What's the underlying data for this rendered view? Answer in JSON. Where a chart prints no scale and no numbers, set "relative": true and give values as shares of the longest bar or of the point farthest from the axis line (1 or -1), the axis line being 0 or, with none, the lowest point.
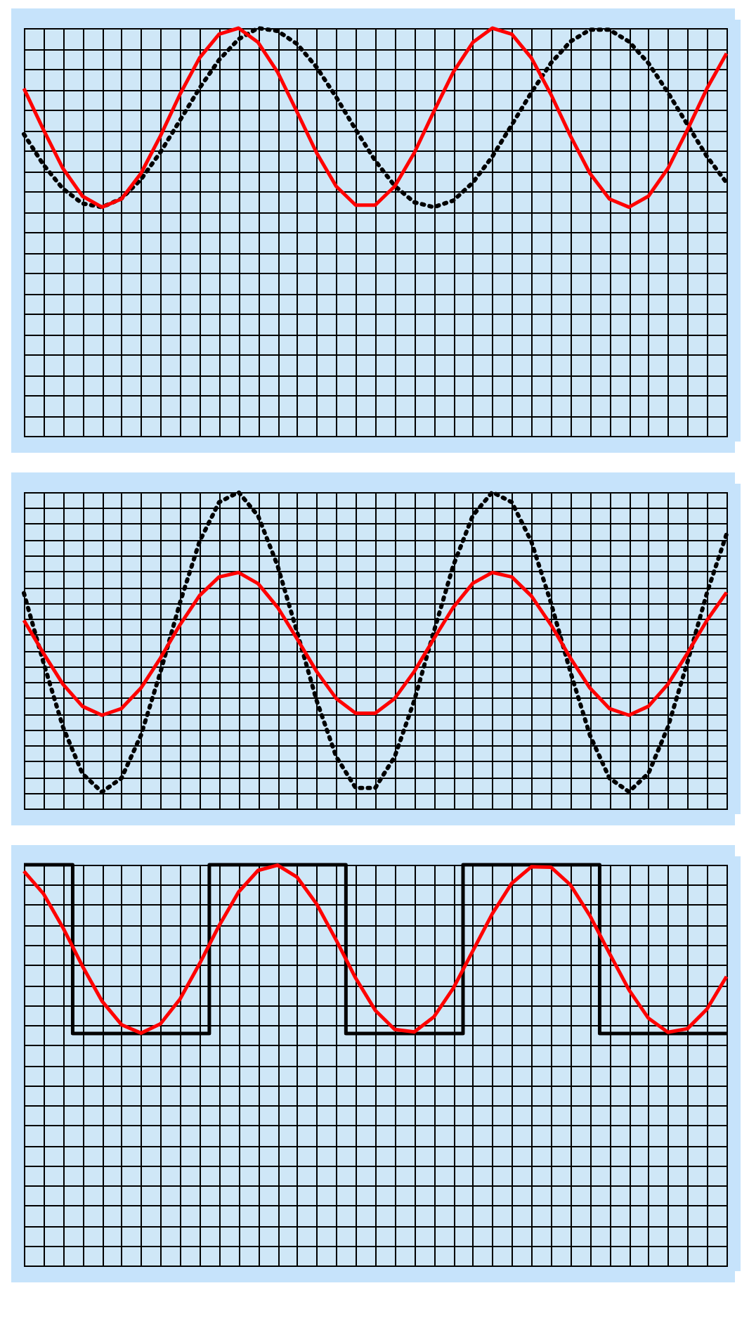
{
  "chart_data": [
    {
      "type": "line",
      "relative": true,
      "grid": true,
      "categories": [
        null,
        null,
        null,
        null,
        null,
        null,
        null,
        null,
        null,
        null,
        null,
        null,
        null,
        null,
        null,
        null,
        null,
        null,
        null,
        null,
        null,
        null,
        null,
        null,
        null,
        null,
        null,
        null,
        null,
        null,
        null,
        null,
        null,
        null,
        null,
        null,
        null
      ],
      "series": [
        {
          "color": "#000000",
          "line_style": "dotted",
          "values": [
            0.74,
            0.665,
            0.606,
            0.57,
            0.561,
            0.582,
            0.629,
            0.696,
            0.774,
            0.853,
            0.922,
            0.973,
            1,
            0.993,
            0.961,
            0.904,
            0.831,
            0.751,
            0.675,
            0.613,
            0.573,
            0.561,
            0.577,
            0.621,
            0.685,
            0.763,
            0.842,
            0.914,
            0.967,
            0.996,
            0.996,
            0.967,
            0.914,
            0.842,
            0.763,
            0.685,
            0.621
          ]
        },
        {
          "color": "#ff0000",
          "line_style": "solid",
          "values": [
            0.852,
            0.751,
            0.656,
            0.588,
            0.561,
            0.581,
            0.644,
            0.736,
            0.838,
            0.927,
            0.985,
            1,
            0.965,
            0.892,
            0.794,
            0.694,
            0.612,
            0.566,
            0.566,
            0.612,
            0.694,
            0.795,
            0.892,
            0.965,
            1,
            0.985,
            0.927,
            0.838,
            0.736,
            0.644,
            0.581,
            0.561,
            0.588,
            0.656,
            0.751,
            0.852,
            0.938
          ]
        }
      ]
    },
    {
      "type": "line",
      "relative": true,
      "grid": true,
      "categories": [
        null,
        null,
        null,
        null,
        null,
        null,
        null,
        null,
        null,
        null,
        null,
        null,
        null,
        null,
        null,
        null,
        null,
        null,
        null,
        null,
        null,
        null,
        null,
        null,
        null,
        null,
        null,
        null,
        null,
        null,
        null,
        null,
        null,
        null,
        null,
        null,
        null
      ],
      "series": [
        {
          "color": "#000000",
          "line_style": "dotted",
          "values": [
            0.681,
            0.462,
            0.258,
            0.11,
            0.052,
            0.096,
            0.232,
            0.432,
            0.651,
            0.844,
            0.968,
            1,
            0.925,
            0.767,
            0.557,
            0.341,
            0.164,
            0.065,
            0.065,
            0.164,
            0.341,
            0.558,
            0.768,
            0.926,
            1,
            0.968,
            0.844,
            0.651,
            0.432,
            0.232,
            0.096,
            0.053,
            0.111,
            0.258,
            0.463,
            0.682,
            0.867
          ]
        },
        {
          "color": "#ff0000",
          "line_style": "solid",
          "values": [
            0.595,
            0.491,
            0.393,
            0.323,
            0.295,
            0.316,
            0.381,
            0.476,
            0.581,
            0.673,
            0.732,
            0.746,
            0.711,
            0.636,
            0.536,
            0.433,
            0.348,
            0.301,
            0.301,
            0.348,
            0.433,
            0.536,
            0.636,
            0.712,
            0.746,
            0.732,
            0.672,
            0.581,
            0.476,
            0.381,
            0.316,
            0.295,
            0.323,
            0.393,
            0.491,
            0.595,
            0.683
          ]
        }
      ]
    },
    {
      "type": "line",
      "relative": true,
      "grid": true,
      "categories": [
        null,
        null,
        null,
        null,
        null,
        null,
        null,
        null,
        null,
        null,
        null,
        null,
        null,
        null,
        null,
        null,
        null,
        null,
        null,
        null,
        null,
        null,
        null,
        null,
        null,
        null,
        null,
        null,
        null,
        null,
        null,
        null,
        null,
        null,
        null,
        null,
        null
      ],
      "series": [
        {
          "type": "step",
          "color": "#000000",
          "line_style": "solid",
          "values": [
            1,
            1,
            1,
            0.579,
            0.579,
            0.579,
            0.579,
            0.579,
            0.579,
            0.579,
            1,
            1,
            1,
            1,
            1,
            1,
            1,
            0.579,
            0.579,
            0.579,
            0.579,
            0.579,
            0.579,
            1,
            1,
            1,
            1,
            1,
            1,
            1,
            0.579,
            0.579,
            0.579,
            0.579,
            0.579,
            0.579,
            0.579
          ]
        },
        {
          "color": "#ff0000",
          "line_style": "solid",
          "values": [
            0.984,
            0.928,
            0.843,
            0.747,
            0.66,
            0.601,
            0.58,
            0.603,
            0.665,
            0.753,
            0.848,
            0.932,
            0.986,
            0.999,
            0.969,
            0.902,
            0.812,
            0.717,
            0.637,
            0.589,
            0.583,
            0.62,
            0.692,
            0.785,
            0.878,
            0.954,
            0.995,
            0.994,
            0.95,
            0.873,
            0.779,
            0.688,
            0.617,
            0.582,
            0.591,
            0.64,
            0.721
          ]
        }
      ]
    }
  ]
}
